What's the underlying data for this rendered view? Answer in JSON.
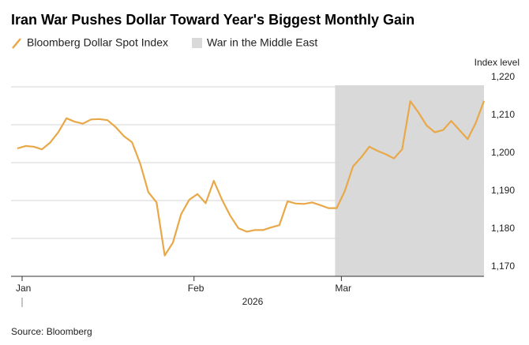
{
  "chart_data": {
    "type": "line",
    "title": "Iran War Pushes Dollar Toward Year's Biggest Monthly Gain",
    "ylabel": "Index level",
    "xlabel": "2026",
    "source": "Source: Bloomberg",
    "categories": [
      "Jan",
      null,
      null,
      null,
      null,
      null,
      null,
      null,
      null,
      null,
      null,
      null,
      null,
      null,
      null,
      null,
      null,
      null,
      null,
      null,
      null,
      "Feb",
      null,
      null,
      null,
      null,
      null,
      null,
      null,
      null,
      null,
      null,
      null,
      null,
      null,
      null,
      null,
      null,
      null,
      "Mar",
      null,
      null,
      null,
      null,
      null,
      null,
      null,
      null,
      null,
      null,
      null,
      null,
      null,
      null,
      null,
      null,
      null,
      null
    ],
    "series": [
      {
        "name": "Bloomberg Dollar Spot Index",
        "color": "#e9a848",
        "values": [
          1203.75,
          1204.4,
          1204.2,
          1203.5,
          1205.3,
          1208,
          1211.7,
          1210.8,
          1210.3,
          1211.4,
          1211.5,
          1211.2,
          1209.4,
          1207,
          1205.4,
          1199.8,
          1192.2,
          1189.5,
          1175.5,
          1178.9,
          1186.4,
          1190.2,
          1191.7,
          1189.3,
          1195.2,
          1190.2,
          1186,
          1182.7,
          1181.8,
          1182.2,
          1182.2,
          1182.9,
          1183.5,
          1189.8,
          1189.2,
          1189.1,
          1189.5,
          1188.8,
          1188,
          1188,
          1192.5,
          1199,
          1201.4,
          1204.2,
          1203.1,
          1202.2,
          1201.1,
          1203.5,
          1216.2,
          1213.2,
          1209.8,
          1208,
          1208.6,
          1211,
          1208.6,
          1206.2,
          1210.5,
          1216.3
        ]
      }
    ],
    "highlight": {
      "name": "War in the Middle East",
      "color": "#d9d9d9",
      "start": "Mar"
    },
    "ylim": [
      1170,
      1220
    ],
    "yticks": [
      {
        "value": 1170,
        "label": "1,170"
      },
      {
        "value": 1180,
        "label": "1,180"
      },
      {
        "value": 1190,
        "label": "1,190"
      },
      {
        "value": 1200,
        "label": "1,200"
      },
      {
        "value": 1210,
        "label": "1,210"
      },
      {
        "value": 1220,
        "label": "1,220"
      }
    ],
    "grid": true
  }
}
